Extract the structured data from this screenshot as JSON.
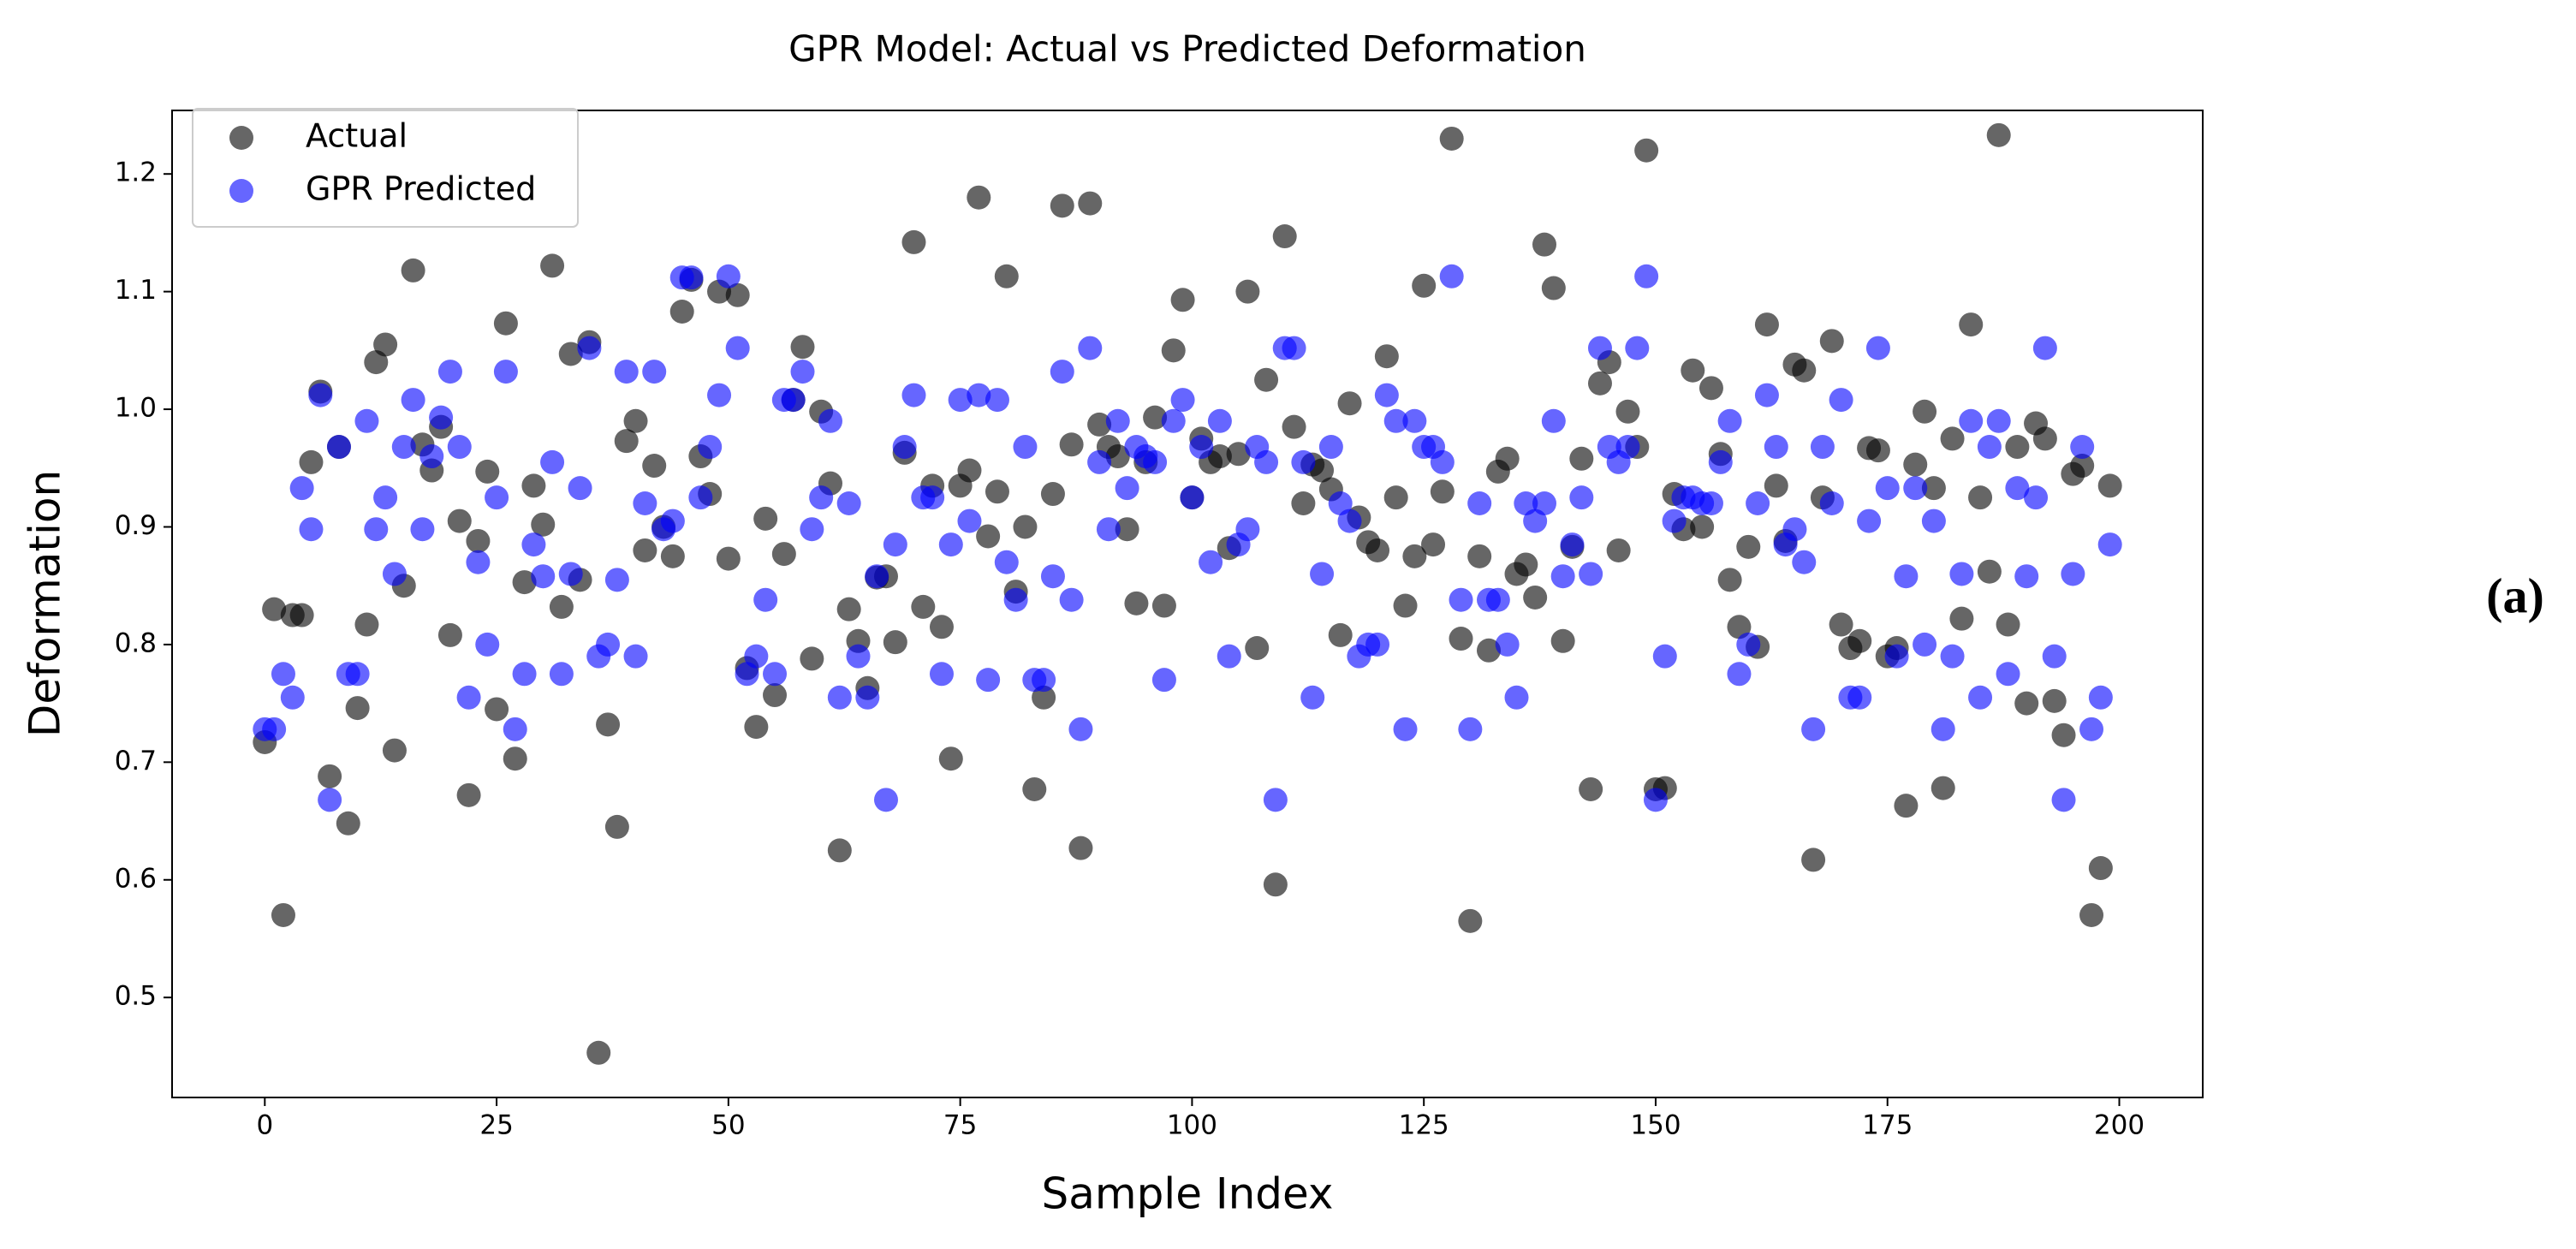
{
  "chart_data": {
    "type": "scatter",
    "title": "GPR Model: Actual vs Predicted Deformation",
    "xlabel": "Sample Index",
    "ylabel": "Deformation",
    "panel_label": "(a)",
    "legend": "upper left",
    "grid": false,
    "alpha": 0.6,
    "xlim": [
      -10,
      209
    ],
    "ylim": [
      0.415,
      1.254
    ],
    "xticks": [
      0,
      25,
      50,
      75,
      100,
      125,
      150,
      175,
      200
    ],
    "yticks": [
      0.5,
      0.6,
      0.7,
      0.8,
      0.9,
      {
        "value": 1,
        "label": "1.0"
      },
      1.1,
      1.2
    ],
    "x": [
      0,
      1,
      2,
      3,
      4,
      5,
      6,
      7,
      8,
      9,
      10,
      11,
      12,
      13,
      14,
      15,
      16,
      17,
      18,
      19,
      20,
      21,
      22,
      23,
      24,
      25,
      26,
      27,
      28,
      29,
      30,
      31,
      32,
      33,
      34,
      35,
      36,
      37,
      38,
      39,
      40,
      41,
      42,
      43,
      44,
      45,
      46,
      47,
      48,
      49,
      50,
      51,
      52,
      53,
      54,
      55,
      56,
      57,
      58,
      59,
      60,
      61,
      62,
      63,
      64,
      65,
      66,
      67,
      68,
      69,
      70,
      71,
      72,
      73,
      74,
      75,
      76,
      77,
      78,
      79,
      80,
      81,
      82,
      83,
      84,
      85,
      86,
      87,
      88,
      89,
      90,
      91,
      92,
      93,
      94,
      95,
      96,
      97,
      98,
      99,
      100,
      101,
      102,
      103,
      104,
      105,
      106,
      107,
      108,
      109,
      110,
      111,
      112,
      113,
      114,
      115,
      116,
      117,
      118,
      119,
      120,
      121,
      122,
      123,
      124,
      125,
      126,
      127,
      128,
      129,
      130,
      131,
      132,
      133,
      134,
      135,
      136,
      137,
      138,
      139,
      140,
      141,
      142,
      143,
      144,
      145,
      146,
      147,
      148,
      149,
      150,
      151,
      152,
      153,
      154,
      155,
      156,
      157,
      158,
      159,
      160,
      161,
      162,
      163,
      164,
      165,
      166,
      167,
      168,
      169,
      170,
      171,
      172,
      173,
      174,
      175,
      176,
      177,
      178,
      179,
      180,
      181,
      182,
      183,
      184,
      185,
      186,
      187,
      188,
      189,
      190,
      191,
      192,
      193,
      194,
      195,
      196,
      197,
      198,
      199
    ],
    "series": [
      {
        "name": "Actual",
        "color": "black",
        "values": [
          0.717,
          0.83,
          0.57,
          0.825,
          0.825,
          0.955,
          1.015,
          0.688,
          0.968,
          0.648,
          0.746,
          0.817,
          1.04,
          1.055,
          0.71,
          0.85,
          1.118,
          0.97,
          0.948,
          0.985,
          0.808,
          0.905,
          0.672,
          0.888,
          0.947,
          0.745,
          1.073,
          0.703,
          0.853,
          0.935,
          0.902,
          1.122,
          0.832,
          1.047,
          0.855,
          1.057,
          0.453,
          0.732,
          0.645,
          0.973,
          0.99,
          0.88,
          0.952,
          0.9,
          0.875,
          1.083,
          1.11,
          0.96,
          0.928,
          1.1,
          0.873,
          1.097,
          0.78,
          0.73,
          0.907,
          0.757,
          0.877,
          1.008,
          1.053,
          0.788,
          0.998,
          0.937,
          0.625,
          0.83,
          0.803,
          0.763,
          0.857,
          0.858,
          0.802,
          0.963,
          1.142,
          0.832,
          0.935,
          0.815,
          0.703,
          0.935,
          0.948,
          1.18,
          0.892,
          0.93,
          1.113,
          0.845,
          0.9,
          0.677,
          0.755,
          0.928,
          1.173,
          0.97,
          0.627,
          1.175,
          0.987,
          0.968,
          0.96,
          0.898,
          0.835,
          0.955,
          0.993,
          0.833,
          1.05,
          1.093,
          0.925,
          0.975,
          0.955,
          0.96,
          0.882,
          0.962,
          1.1,
          0.797,
          1.025,
          0.596,
          1.147,
          0.985,
          0.92,
          0.953,
          0.948,
          0.932,
          0.808,
          1.005,
          0.908,
          0.887,
          0.88,
          1.045,
          0.925,
          0.833,
          0.875,
          1.105,
          0.885,
          0.93,
          1.23,
          0.805,
          0.565,
          0.875,
          0.795,
          0.947,
          0.958,
          0.86,
          0.868,
          0.84,
          1.14,
          1.103,
          0.803,
          0.883,
          0.958,
          0.677,
          1.022,
          1.04,
          0.88,
          0.998,
          0.968,
          1.22,
          0.677,
          0.678,
          0.928,
          0.898,
          1.033,
          0.9,
          1.018,
          0.962,
          0.855,
          0.815,
          0.883,
          0.798,
          1.072,
          0.935,
          0.888,
          1.038,
          1.033,
          0.617,
          0.925,
          1.058,
          0.817,
          0.797,
          0.803,
          0.967,
          0.965,
          0.79,
          0.797,
          0.663,
          0.953,
          0.998,
          0.933,
          0.678,
          0.975,
          0.822,
          1.072,
          0.925,
          0.862,
          1.233,
          0.817,
          0.968,
          0.75,
          0.988,
          0.975,
          0.752,
          0.723,
          0.945,
          0.952,
          0.57,
          0.61,
          0.935
        ]
      },
      {
        "name": "GPR Predicted",
        "color": "blue",
        "values": [
          0.728,
          0.728,
          0.775,
          0.755,
          0.933,
          0.898,
          1.012,
          0.668,
          0.968,
          0.775,
          0.775,
          0.99,
          0.898,
          0.925,
          0.86,
          0.968,
          1.008,
          0.898,
          0.96,
          0.993,
          1.032,
          0.968,
          0.755,
          0.87,
          0.8,
          0.925,
          1.032,
          0.728,
          0.775,
          0.885,
          0.858,
          0.955,
          0.775,
          0.86,
          0.933,
          1.052,
          0.79,
          0.8,
          0.855,
          1.032,
          0.79,
          0.92,
          1.032,
          0.898,
          0.905,
          1.112,
          1.112,
          0.925,
          0.968,
          1.012,
          1.113,
          1.052,
          0.775,
          0.79,
          0.838,
          0.775,
          1.008,
          1.008,
          1.032,
          0.898,
          0.925,
          0.99,
          0.755,
          0.92,
          0.79,
          0.755,
          0.858,
          0.668,
          0.885,
          0.968,
          1.012,
          0.925,
          0.925,
          0.775,
          0.885,
          1.008,
          0.905,
          1.012,
          0.77,
          1.008,
          0.87,
          0.838,
          0.968,
          0.77,
          0.77,
          0.858,
          1.032,
          0.838,
          0.728,
          1.052,
          0.955,
          0.898,
          0.99,
          0.933,
          0.968,
          0.96,
          0.955,
          0.77,
          0.99,
          1.008,
          0.925,
          0.968,
          0.87,
          0.99,
          0.79,
          0.885,
          0.898,
          0.968,
          0.955,
          0.668,
          1.052,
          1.052,
          0.955,
          0.755,
          0.86,
          0.968,
          0.92,
          0.905,
          0.79,
          0.8,
          0.8,
          1.012,
          0.99,
          0.728,
          0.99,
          0.968,
          0.968,
          0.955,
          1.113,
          0.838,
          0.728,
          0.92,
          0.838,
          0.838,
          0.8,
          0.755,
          0.92,
          0.905,
          0.92,
          0.99,
          0.858,
          0.885,
          0.925,
          0.86,
          1.052,
          0.968,
          0.955,
          0.968,
          1.052,
          1.113,
          0.668,
          0.79,
          0.905,
          0.925,
          0.925,
          0.92,
          0.92,
          0.955,
          0.99,
          0.775,
          0.8,
          0.92,
          1.012,
          0.968,
          0.885,
          0.898,
          0.87,
          0.728,
          0.968,
          0.92,
          1.008,
          0.755,
          0.755,
          0.905,
          1.052,
          0.933,
          0.79,
          0.858,
          0.933,
          0.8,
          0.905,
          0.728,
          0.79,
          0.86,
          0.99,
          0.755,
          0.968,
          0.99,
          0.775,
          0.933,
          0.858,
          0.925,
          1.052,
          0.79,
          0.668,
          0.86,
          0.968,
          0.728,
          0.755,
          0.885
        ]
      }
    ]
  }
}
